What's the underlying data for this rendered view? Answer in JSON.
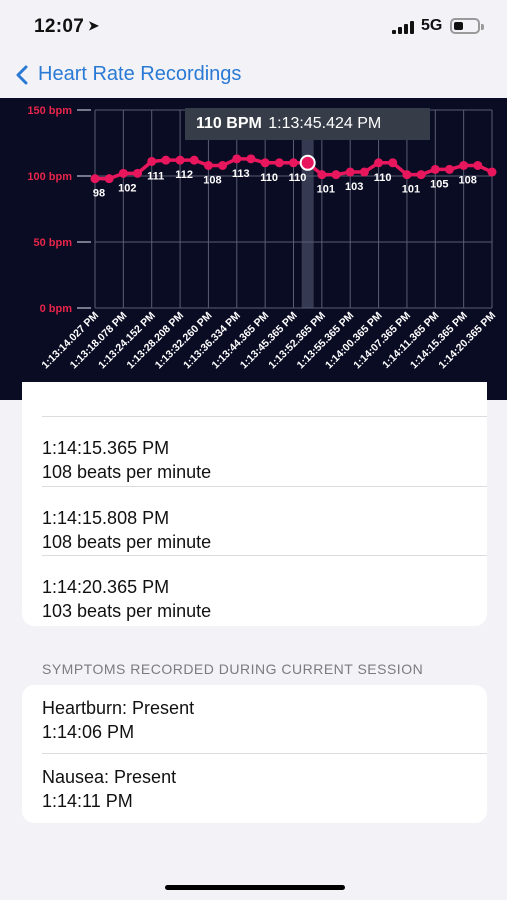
{
  "status": {
    "time": "12:07",
    "network": "5G"
  },
  "nav": {
    "title": "Heart Rate Recordings"
  },
  "chart_data": {
    "type": "line",
    "y_tick_labels": [
      "150 bpm",
      "100 bpm",
      "50 bpm",
      "0 bpm"
    ],
    "ylim": [
      0,
      150
    ],
    "x_labels": [
      "1:13:14.027 PM",
      "1:13:18.078 PM",
      "1:13:24.152 PM",
      "1:13:28.208 PM",
      "1:13:32.260 PM",
      "1:13:36.334 PM",
      "1:13:44.365 PM",
      "1:13:45.365 PM",
      "1:13:52.365 PM",
      "1:13:55.365 PM",
      "1:14:00.365 PM",
      "1:14:07.365 PM",
      "1:14:11.365 PM",
      "1:14:15.365 PM",
      "1:14:20.365 PM"
    ],
    "values": [
      98,
      98,
      102,
      102,
      111,
      112,
      112,
      112,
      108,
      108,
      113,
      113,
      110,
      110,
      110,
      110,
      101,
      101,
      103,
      103,
      110,
      110,
      101,
      101,
      105,
      105,
      108,
      108,
      103
    ],
    "data_labels": [
      {
        "index": 0,
        "text": "98"
      },
      {
        "index": 2,
        "text": "102"
      },
      {
        "index": 4,
        "text": "111"
      },
      {
        "index": 6,
        "text": "112"
      },
      {
        "index": 8,
        "text": "108"
      },
      {
        "index": 10,
        "text": "113"
      },
      {
        "index": 12,
        "text": "110"
      },
      {
        "index": 14,
        "text": "110"
      },
      {
        "index": 16,
        "text": "101"
      },
      {
        "index": 18,
        "text": "103"
      },
      {
        "index": 20,
        "text": "110"
      },
      {
        "index": 22,
        "text": "101"
      },
      {
        "index": 24,
        "text": "105"
      },
      {
        "index": 26,
        "text": "108"
      }
    ],
    "selected_index": 15,
    "tooltip": {
      "value": "110 BPM",
      "time": "1:13:45.424 PM"
    },
    "grid": true,
    "line_color": "#e8175d",
    "tick_label_color": "#e8254a"
  },
  "recordings": [
    {
      "time": "1:14:15.365 PM",
      "bpm": "108 beats per minute"
    },
    {
      "time": "1:14:15.808 PM",
      "bpm": "108 beats per minute"
    },
    {
      "time": "1:14:20.365 PM",
      "bpm": "103 beats per minute"
    }
  ],
  "symptoms_header": "SYMPTOMS RECORDED DURING CURRENT SESSION",
  "symptoms": [
    {
      "name": "Heartburn: Present",
      "time": "1:14:06 PM"
    },
    {
      "name": "Nausea: Present",
      "time": "1:14:11 PM"
    }
  ]
}
